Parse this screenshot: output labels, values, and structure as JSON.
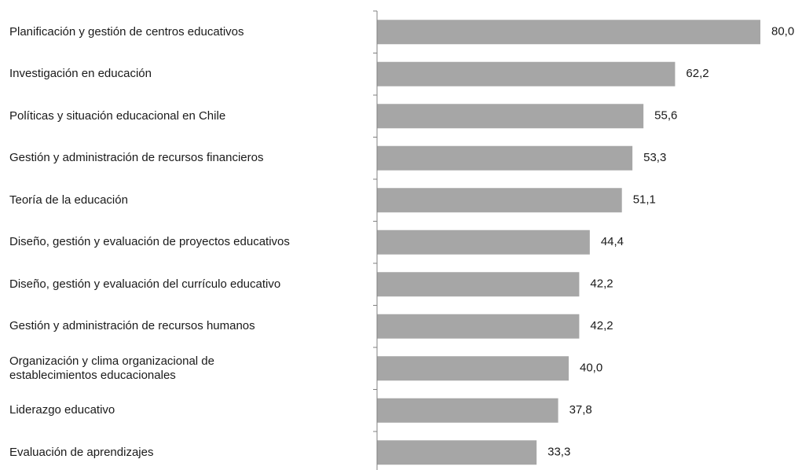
{
  "chart_data": {
    "type": "bar",
    "orientation": "horizontal",
    "categories": [
      "Planificación y gestión de centros educativos",
      "Investigación en educación",
      "Políticas y situación educacional en Chile",
      "Gestión y administración de recursos financieros",
      "Teoría de la educación",
      "Diseño, gestión y evaluación de proyectos educativos",
      "Diseño, gestión y evaluación del currículo educativo",
      "Gestión y administración de recursos humanos",
      "Organización y clima organizacional de\nestablecimientos educacionales",
      "Liderazgo educativo",
      "Evaluación de aprendizajes"
    ],
    "values": [
      80.0,
      62.2,
      55.6,
      53.3,
      51.1,
      44.4,
      42.2,
      42.2,
      40.0,
      37.8,
      33.3
    ],
    "value_labels": [
      "80,0",
      "62,2",
      "55,6",
      "53,3",
      "51,1",
      "44,4",
      "42,2",
      "42,2",
      "40,0",
      "37,8",
      "33,3"
    ],
    "color": "#a6a6a6",
    "xlim": [
      0,
      80
    ]
  }
}
